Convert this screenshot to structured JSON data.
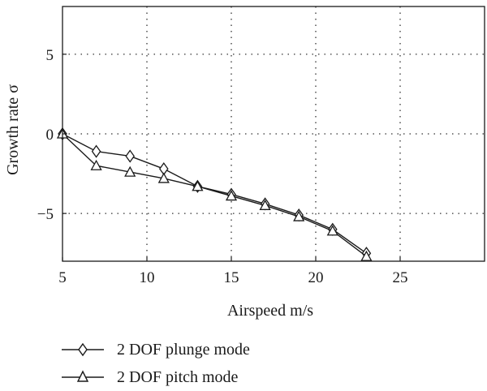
{
  "chart_data": {
    "type": "line",
    "xlabel": "Airspeed m/s",
    "ylabel": "Growth rate σ",
    "xlim": [
      5,
      30
    ],
    "ylim": [
      -8,
      8
    ],
    "xticks": [
      5,
      10,
      15,
      20,
      25
    ],
    "yticks": [
      -5,
      0,
      5
    ],
    "grid": true,
    "legend_position": "bottom",
    "series": [
      {
        "name": "2 DOF plunge mode",
        "marker": "diamond",
        "x": [
          5,
          7,
          9,
          11,
          13,
          15,
          17,
          19,
          21,
          23
        ],
        "y": [
          0,
          -1.1,
          -1.4,
          -2.2,
          -3.3,
          -3.8,
          -4.4,
          -5.1,
          -6.0,
          -7.5
        ]
      },
      {
        "name": "2 DOF pitch mode",
        "marker": "triangle",
        "x": [
          5,
          7,
          9,
          11,
          13,
          15,
          17,
          19,
          21,
          23
        ],
        "y": [
          0,
          -2.0,
          -2.4,
          -2.8,
          -3.3,
          -3.9,
          -4.5,
          -5.2,
          -6.1,
          -7.7
        ]
      }
    ]
  }
}
